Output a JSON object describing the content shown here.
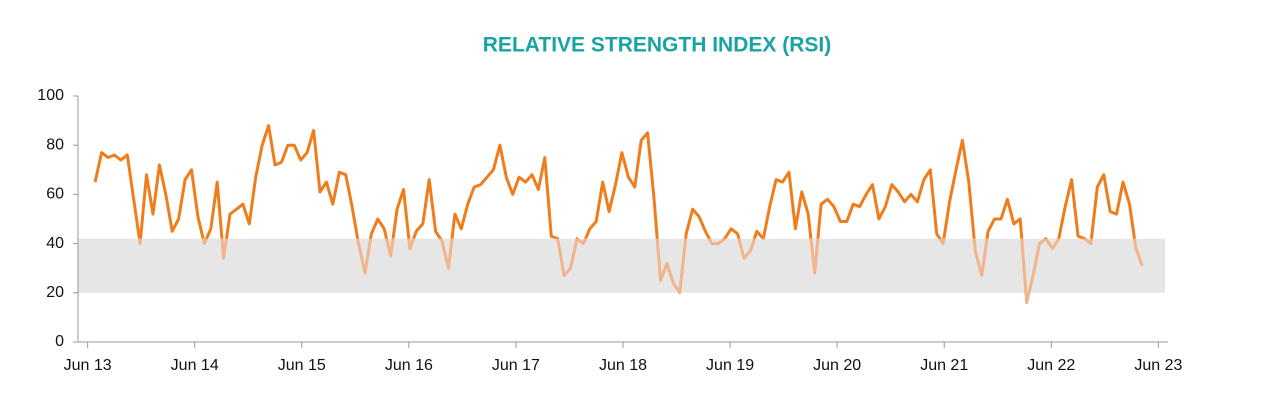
{
  "chart_data": {
    "type": "line",
    "title": "RELATIVE STRENGTH INDEX (RSI)",
    "x": [
      2013.57,
      2013.63,
      2013.69,
      2013.75,
      2013.81,
      2013.87,
      2013.93,
      2013.99,
      2014.05,
      2014.11,
      2014.17,
      2014.23,
      2014.29,
      2014.35,
      2014.41,
      2014.47,
      2014.53,
      2014.59,
      2014.65,
      2014.71,
      2014.77,
      2014.83,
      2014.89,
      2014.95,
      2015.01,
      2015.07,
      2015.13,
      2015.19,
      2015.25,
      2015.31,
      2015.37,
      2015.43,
      2015.49,
      2015.55,
      2015.61,
      2015.67,
      2015.73,
      2015.79,
      2015.85,
      2015.91,
      2015.97,
      2016.03,
      2016.09,
      2016.15,
      2016.21,
      2016.27,
      2016.33,
      2016.39,
      2016.45,
      2016.51,
      2016.57,
      2016.63,
      2016.69,
      2016.75,
      2016.81,
      2016.87,
      2016.93,
      2016.99,
      2017.05,
      2017.11,
      2017.17,
      2017.23,
      2017.29,
      2017.35,
      2017.41,
      2017.47,
      2017.53,
      2017.59,
      2017.65,
      2017.71,
      2017.77,
      2017.83,
      2017.89,
      2017.95,
      2018.01,
      2018.07,
      2018.13,
      2018.19,
      2018.25,
      2018.31,
      2018.37,
      2018.43,
      2018.49,
      2018.55,
      2018.61,
      2018.67,
      2018.73,
      2018.79,
      2018.85,
      2018.91,
      2018.97,
      2019.03,
      2019.09,
      2019.15,
      2019.21,
      2019.27,
      2019.33,
      2019.39,
      2019.45,
      2019.51,
      2019.57,
      2019.63,
      2019.69,
      2019.75,
      2019.81,
      2019.87,
      2019.93,
      2019.99,
      2020.05,
      2020.11,
      2020.17,
      2020.23,
      2020.29,
      2020.35,
      2020.41,
      2020.47,
      2020.53,
      2020.59,
      2020.65,
      2020.71,
      2020.77,
      2020.83,
      2020.89,
      2020.95,
      2021.01,
      2021.07,
      2021.13,
      2021.19,
      2021.25,
      2021.31,
      2021.37,
      2021.43,
      2021.49,
      2021.55,
      2021.61,
      2021.67,
      2021.73,
      2021.79,
      2021.85,
      2021.91,
      2021.97,
      2022.03,
      2022.09,
      2022.15,
      2022.21,
      2022.27,
      2022.33,
      2022.39,
      2022.45,
      2022.51,
      2022.57,
      2022.63,
      2022.69,
      2022.75,
      2022.81,
      2022.87,
      2022.93,
      2022.99,
      2023.05,
      2023.11,
      2023.17,
      2023.23,
      2023.29,
      2023.35
    ],
    "values": [
      65,
      77,
      75,
      76,
      74,
      76,
      58,
      40,
      68,
      52,
      72,
      60,
      45,
      50,
      66,
      70,
      51,
      40,
      46,
      65,
      34,
      52,
      54,
      56,
      48,
      67,
      80,
      88,
      72,
      73,
      80,
      80,
      74,
      77,
      86,
      61,
      65,
      56,
      69,
      68,
      55,
      40,
      28,
      44,
      50,
      46,
      35,
      54,
      62,
      38,
      45,
      48,
      66,
      45,
      41,
      30,
      52,
      46,
      56,
      63,
      64,
      67,
      70,
      80,
      67,
      60,
      67,
      65,
      68,
      62,
      75,
      43,
      42,
      27,
      30,
      42,
      40,
      46,
      49,
      65,
      53,
      64,
      77,
      67,
      63,
      82,
      85,
      58,
      25,
      32,
      24,
      20,
      44,
      54,
      51,
      45,
      40,
      40,
      42,
      46,
      44,
      34,
      37,
      45,
      42,
      55,
      66,
      65,
      69,
      46,
      61,
      52,
      28,
      56,
      58,
      55,
      49,
      49,
      56,
      55,
      60,
      64,
      50,
      55,
      64,
      61,
      57,
      60,
      57,
      66,
      70,
      44,
      40,
      57,
      70,
      82,
      65,
      37,
      27,
      45,
      50,
      50,
      58,
      48,
      50,
      16,
      27,
      40,
      42,
      38,
      42,
      55,
      66,
      43,
      42,
      40,
      63,
      68,
      53,
      52,
      65,
      56,
      38,
      31
    ],
    "color": "#f07d1c",
    "band_line_color": "#f2b48a",
    "shaded_range": [
      20,
      42
    ],
    "band_color": "#e6e6e6",
    "xlim": [
      2013.41,
      2023.59
    ],
    "xticks": [
      {
        "value": 2013.5,
        "label": "Jun 13"
      },
      {
        "value": 2014.5,
        "label": "Jun 14"
      },
      {
        "value": 2015.5,
        "label": "Jun 15"
      },
      {
        "value": 2016.5,
        "label": "Jun 16"
      },
      {
        "value": 2017.5,
        "label": "Jun 17"
      },
      {
        "value": 2018.5,
        "label": "Jun 18"
      },
      {
        "value": 2019.5,
        "label": "Jun 19"
      },
      {
        "value": 2020.5,
        "label": "Jun 20"
      },
      {
        "value": 2021.5,
        "label": "Jun 21"
      },
      {
        "value": 2022.5,
        "label": "Jun 22"
      },
      {
        "value": 2023.5,
        "label": "Jun 23"
      }
    ],
    "ylim": [
      0,
      100
    ],
    "yticks": [
      0,
      20,
      40,
      60,
      80,
      100
    ]
  }
}
